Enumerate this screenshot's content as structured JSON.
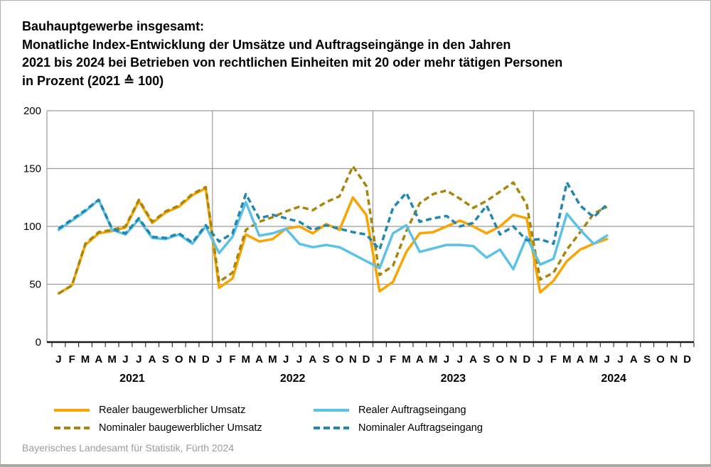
{
  "header": {
    "title_lines": [
      "Bauhauptgewerbe insgesamt:",
      "Monatliche Index-Entwicklung der Umsätze und Auftragseingänge in den Jahren",
      "2021 bis 2024 bei Betrieben von rechtlichen Einheiten mit 20 oder mehr tätigen Personen",
      "in Prozent (2021 ≙ 100)"
    ]
  },
  "footer": {
    "source": "Bayerisches Landesamt für Statistik, Fürth 2024"
  },
  "chart_data": {
    "type": "line",
    "title": "Monatliche Index-Entwicklung der Umsätze und Auftragseingänge 2021–2024, Bauhauptgewerbe insgesamt, in Prozent (2021 ≙ 100)",
    "ylim": [
      0,
      200
    ],
    "y_ticks": [
      0,
      50,
      100,
      150,
      200
    ],
    "grid": true,
    "legend_position": "bottom",
    "month_letters": [
      "J",
      "F",
      "M",
      "A",
      "M",
      "J",
      "J",
      "A",
      "S",
      "O",
      "N",
      "D"
    ],
    "years": [
      "2021",
      "2022",
      "2023",
      "2024"
    ],
    "months_total": 48,
    "colors": {
      "grid": "#9b9b9b",
      "axis": "#1a1a1a"
    },
    "series": [
      {
        "name": "Realer baugewerblicher Umsatz",
        "color": "#F9A400",
        "dash": "solid",
        "values": [
          42,
          49,
          84,
          94,
          96,
          99,
          122,
          103,
          112,
          117,
          127,
          133,
          47,
          55,
          93,
          87,
          89,
          98,
          100,
          94,
          102,
          97,
          125,
          110,
          44,
          52,
          78,
          94,
          95,
          100,
          105,
          100,
          94,
          100,
          110,
          107,
          43,
          53,
          70,
          80,
          85,
          89
        ]
      },
      {
        "name": "Nominaler baugewerblicher Umsatz",
        "color": "#A8860B",
        "dash": "dashed",
        "values": [
          42,
          49,
          85,
          95,
          97,
          100,
          123,
          104,
          113,
          118,
          128,
          134,
          52,
          60,
          97,
          104,
          108,
          113,
          117,
          114,
          121,
          126,
          152,
          135,
          58,
          66,
          96,
          120,
          128,
          131,
          124,
          116,
          122,
          130,
          138,
          119,
          54,
          60,
          80,
          95,
          111,
          117
        ]
      },
      {
        "name": "Realer Auftragseingang",
        "color": "#5BC2E7",
        "dash": "solid",
        "values": [
          97,
          105,
          113,
          123,
          97,
          93,
          106,
          90,
          89,
          93,
          85,
          100,
          77,
          91,
          121,
          92,
          94,
          98,
          85,
          82,
          84,
          82,
          76,
          70,
          64,
          94,
          101,
          78,
          81,
          84,
          84,
          83,
          73,
          80,
          63,
          91,
          67,
          72,
          111,
          97,
          85,
          92
        ]
      },
      {
        "name": "Nominaler Auftragseingang",
        "color": "#2187AE",
        "dash": "dashed",
        "values": [
          98,
          106,
          114,
          123,
          98,
          94,
          107,
          91,
          90,
          94,
          86,
          101,
          87,
          94,
          128,
          107,
          110,
          107,
          104,
          97,
          101,
          98,
          95,
          93,
          80,
          116,
          129,
          104,
          107,
          109,
          100,
          103,
          118,
          93,
          100,
          88,
          89,
          85,
          138,
          118,
          108,
          119
        ]
      }
    ]
  }
}
